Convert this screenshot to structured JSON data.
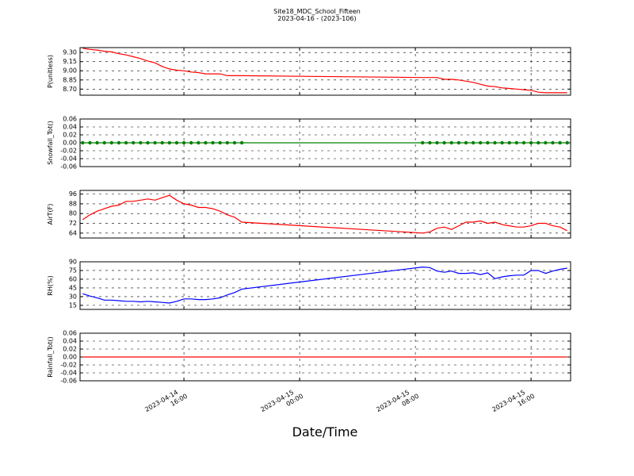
{
  "chart_data": {
    "title": "Site18_MDC_School_Fifteen",
    "subtitle": "2023-04-16 - (2023-106)",
    "xlabel": "Date/Time",
    "xlim": [
      "2023-04-14 08:49",
      "2023-04-15 18:44"
    ],
    "xticks": [
      "2023-04-14 16:00",
      "2023-04-15 00:00",
      "2023-04-15 08:00",
      "2023-04-15 16:00"
    ],
    "grid": true,
    "x": [
      "2023-04-14 09:00",
      "2023-04-14 09:30",
      "2023-04-14 10:00",
      "2023-04-14 10:30",
      "2023-04-14 11:00",
      "2023-04-14 11:30",
      "2023-04-14 12:00",
      "2023-04-14 12:30",
      "2023-04-14 13:00",
      "2023-04-14 13:30",
      "2023-04-14 14:00",
      "2023-04-14 14:30",
      "2023-04-14 15:00",
      "2023-04-14 15:30",
      "2023-04-14 16:00",
      "2023-04-14 16:30",
      "2023-04-14 17:00",
      "2023-04-14 17:30",
      "2023-04-14 18:00",
      "2023-04-14 18:30",
      "2023-04-14 19:00",
      "2023-04-14 19:30",
      "2023-04-14 20:00",
      "2023-04-15 08:30",
      "2023-04-15 09:00",
      "2023-04-15 09:30",
      "2023-04-15 10:00",
      "2023-04-15 10:30",
      "2023-04-15 11:00",
      "2023-04-15 11:30",
      "2023-04-15 12:00",
      "2023-04-15 12:30",
      "2023-04-15 13:00",
      "2023-04-15 13:30",
      "2023-04-15 14:00",
      "2023-04-15 14:30",
      "2023-04-15 15:00",
      "2023-04-15 15:30",
      "2023-04-15 16:00",
      "2023-04-15 16:30",
      "2023-04-15 17:00",
      "2023-04-15 17:30",
      "2023-04-15 18:00",
      "2023-04-15 18:30"
    ],
    "panels": [
      {
        "type": "line",
        "ylabel": "P(unitless)",
        "ylim": [
          8.6,
          9.38
        ],
        "yticks": [
          {
            "value": 8.7,
            "label": "8.70"
          },
          {
            "value": 8.85,
            "label": "8.85"
          },
          {
            "value": 9.0,
            "label": "9.00"
          },
          {
            "value": 9.15,
            "label": "9.15"
          },
          {
            "value": 9.3,
            "label": "9.30"
          }
        ],
        "series": [
          {
            "color": "#ff0000",
            "values": [
              9.37,
              9.35,
              9.34,
              9.32,
              9.31,
              9.28,
              9.26,
              9.23,
              9.2,
              9.16,
              9.13,
              9.07,
              9.03,
              9.01,
              9.0,
              8.98,
              8.97,
              8.95,
              8.95,
              8.95,
              8.92,
              8.92,
              8.92,
              8.89,
              8.89,
              8.89,
              8.86,
              8.86,
              8.85,
              8.83,
              8.81,
              8.78,
              8.75,
              8.74,
              8.72,
              8.71,
              8.7,
              8.69,
              8.68,
              8.65,
              8.64,
              8.64,
              8.64,
              8.64
            ]
          }
        ]
      },
      {
        "type": "line",
        "ylabel": "Snowfall_Tot()",
        "ylim": [
          -0.06,
          0.06
        ],
        "marker": true,
        "yticks": [
          -0.06,
          -0.04,
          -0.02,
          {
            "value": 0,
            "label": "0.00"
          },
          0.02,
          0.04,
          0.06
        ],
        "series": [
          {
            "color": "#008000",
            "values": [
              0,
              0,
              0,
              0,
              0,
              0,
              0,
              0,
              0,
              0,
              0,
              0,
              0,
              0,
              0,
              0,
              0,
              0,
              0,
              0,
              0,
              0,
              0,
              0,
              0,
              0,
              0,
              0,
              0,
              0,
              0,
              0,
              0,
              0,
              0,
              0,
              0,
              0,
              0,
              0,
              0,
              0,
              0,
              0
            ]
          }
        ]
      },
      {
        "type": "line",
        "ylabel": "AirT(F)",
        "ylim": [
          60,
          99
        ],
        "yticks": [
          64,
          72,
          80,
          88,
          96
        ],
        "series": [
          {
            "color": "#ff0000",
            "values": [
              75,
              79,
              82,
              84,
              86,
              87,
              90,
              90,
              91,
              92,
              91,
              93,
              95,
              91,
              88,
              87,
              85,
              85,
              84,
              82,
              79,
              77,
              73,
              64,
              65,
              68,
              69,
              67,
              70,
              73,
              73,
              74,
              72,
              73,
              71,
              70,
              69,
              69,
              70,
              72,
              72,
              70,
              69,
              66
            ]
          }
        ]
      },
      {
        "type": "line",
        "ylabel": "RH(%)",
        "ylim": [
          8,
          90
        ],
        "yticks": [
          15,
          30,
          45,
          60,
          75,
          90
        ],
        "series": [
          {
            "color": "#0000ff",
            "values": [
              35,
              31,
              28,
              24,
              24,
              23,
              22,
              22,
              21,
              22,
              21,
              20,
              19,
              22,
              26,
              26,
              25,
              25,
              26,
              28,
              33,
              37,
              43,
              81,
              80,
              74,
              72,
              74,
              70,
              70,
              71,
              68,
              71,
              61,
              64,
              66,
              67,
              67,
              75,
              75,
              70,
              74,
              77,
              79
            ]
          }
        ]
      },
      {
        "type": "line",
        "ylabel": "Rainfall_Tot()",
        "ylim": [
          -0.06,
          0.06
        ],
        "yticks": [
          -0.06,
          -0.04,
          -0.02,
          {
            "value": 0,
            "label": "0.00"
          },
          0.02,
          0.04,
          0.06
        ],
        "series": [
          {
            "color": "#ff0000",
            "values": [
              0,
              0,
              0,
              0,
              0,
              0,
              0,
              0,
              0,
              0,
              0,
              0,
              0,
              0,
              0,
              0,
              0,
              0,
              0,
              0,
              0,
              0,
              0,
              0,
              0,
              0,
              0,
              0,
              0,
              0,
              0,
              0,
              0,
              0,
              0,
              0,
              0,
              0,
              0,
              0,
              0,
              0,
              0,
              0
            ]
          }
        ]
      }
    ]
  }
}
